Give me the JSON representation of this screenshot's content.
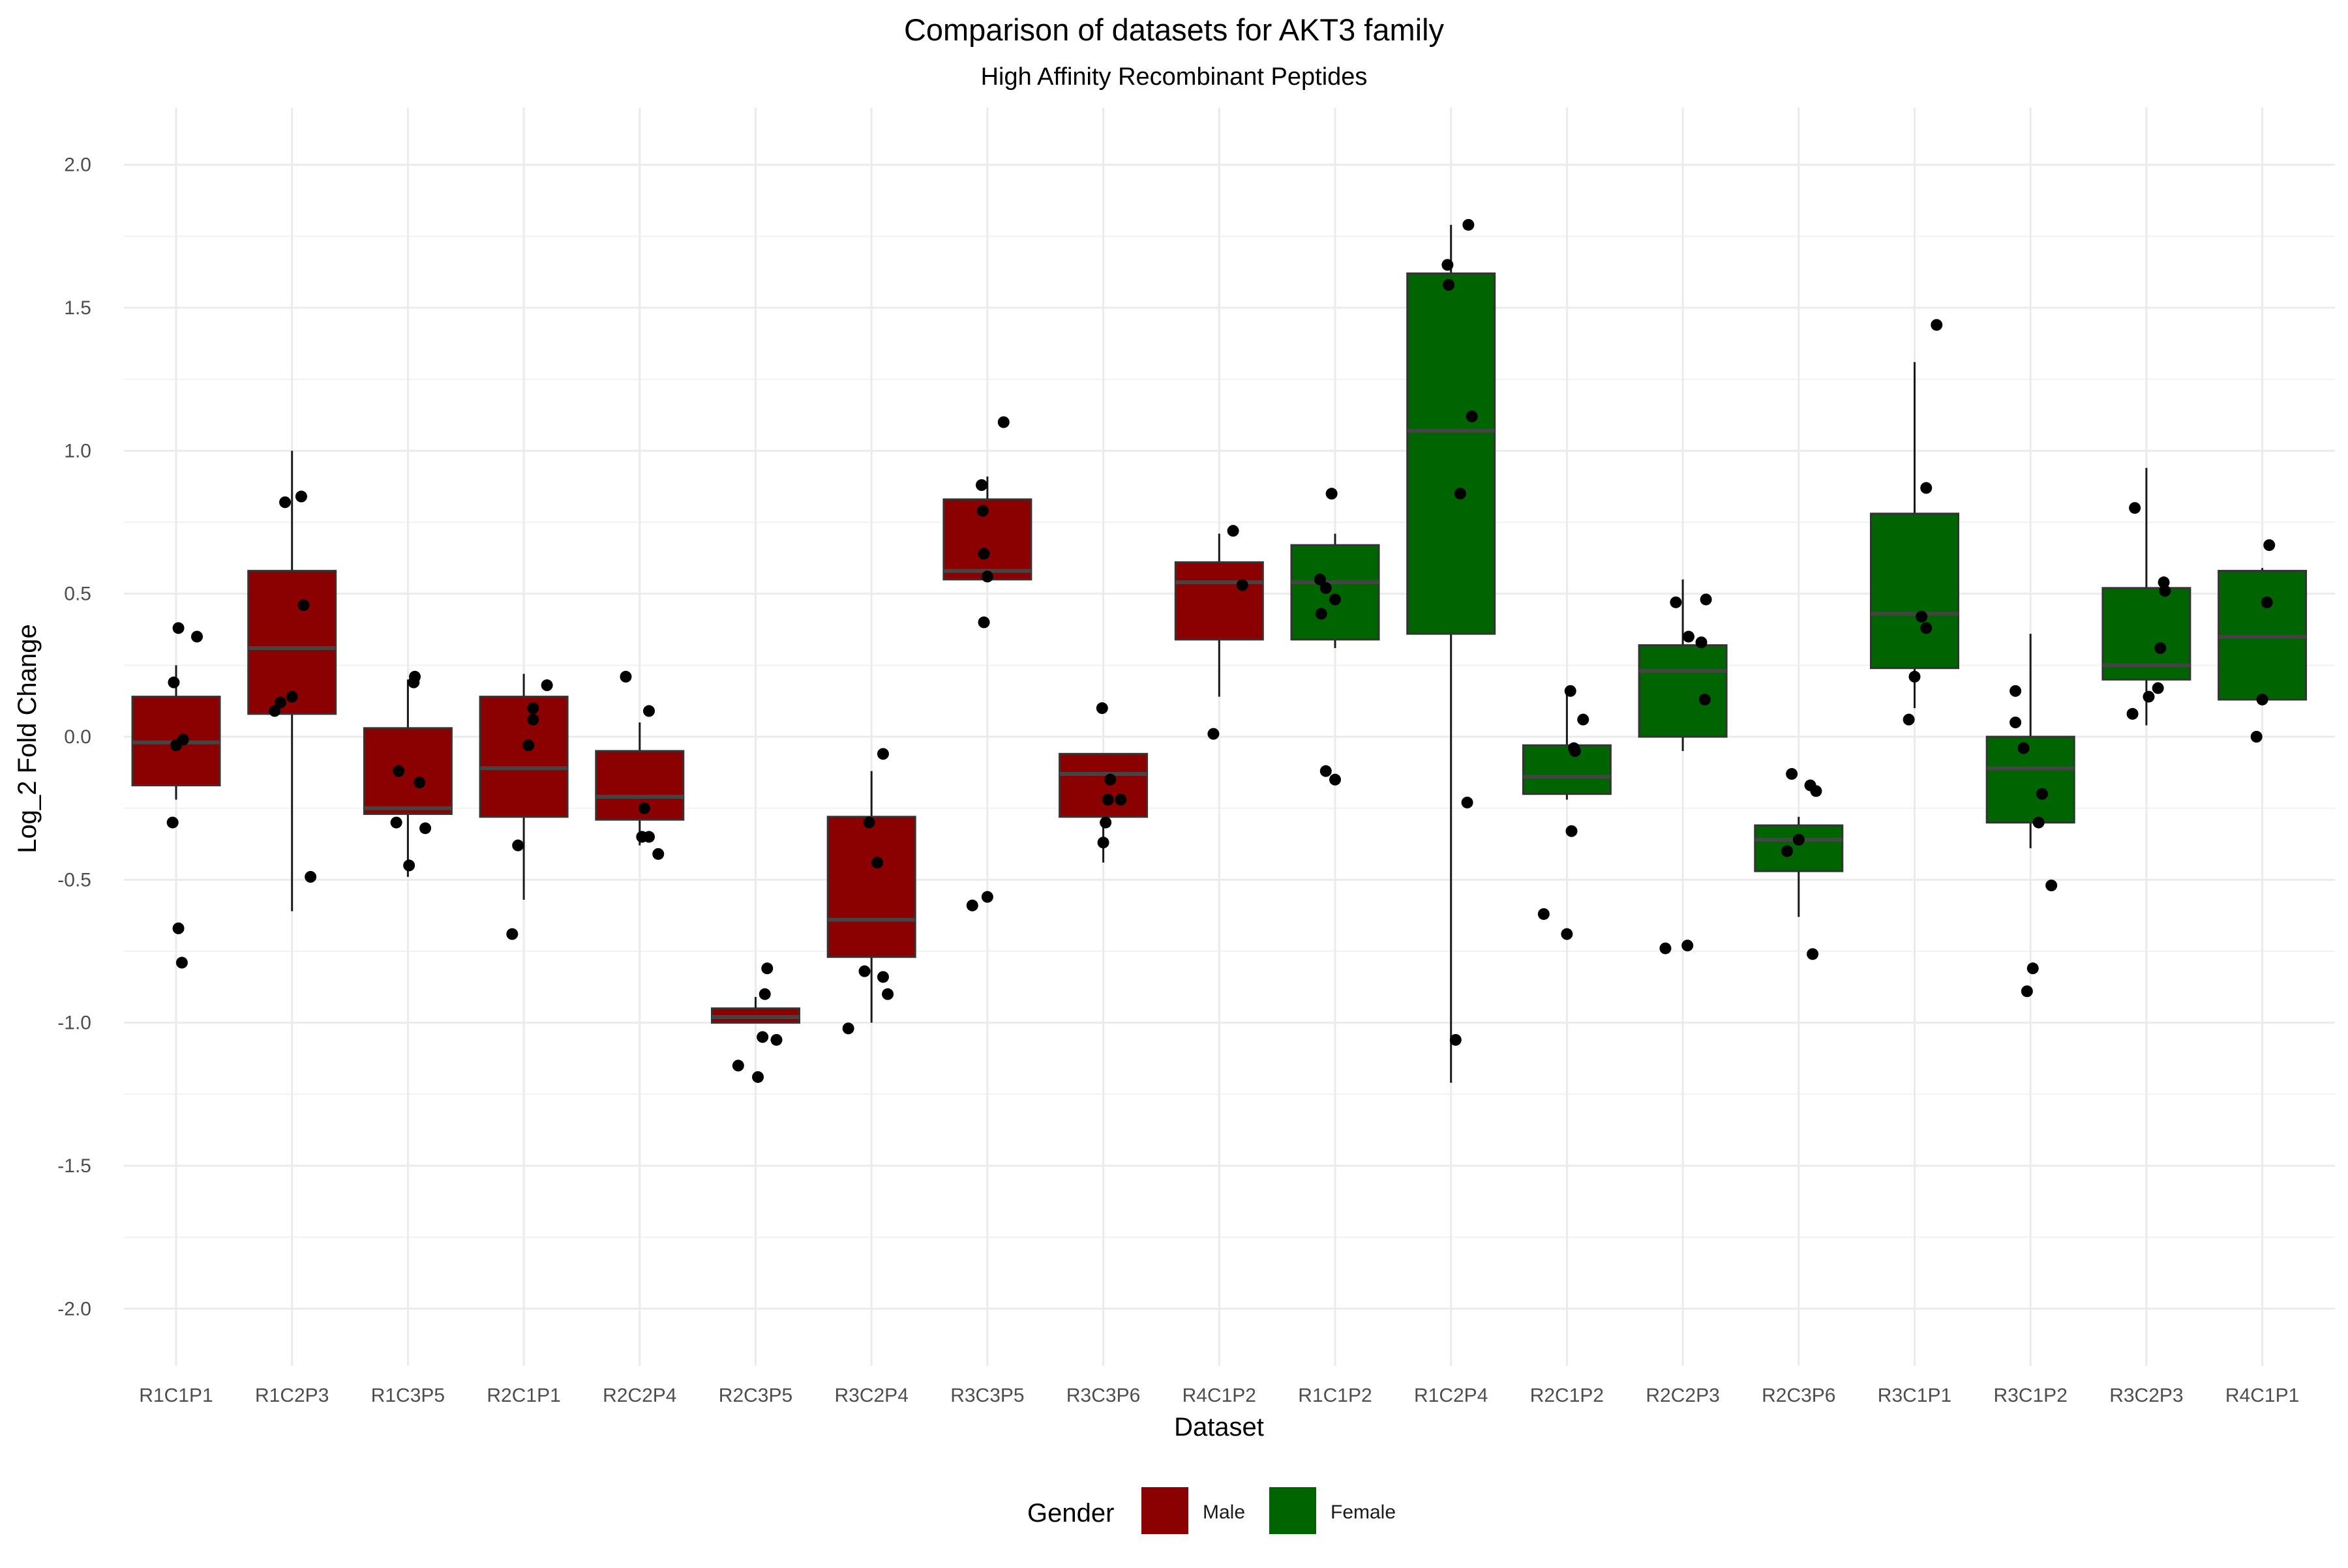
{
  "chart_data": {
    "type": "box",
    "title": "Comparison of datasets for AKT3 family",
    "subtitle": "High Affinity Recombinant Peptides",
    "xlabel": "Dataset",
    "ylabel": "Log_2 Fold Change",
    "ylim": [
      -2.2,
      2.2
    ],
    "yticks": [
      -2.0,
      -1.5,
      -1.0,
      -0.5,
      0.0,
      0.5,
      1.0,
      1.5,
      2.0
    ],
    "ytick_labels": [
      "-2.0",
      "-1.5",
      "-1.0",
      "-0.5",
      "0.0",
      "0.5",
      "1.0",
      "1.5",
      "2.0"
    ],
    "grid": true,
    "legend": {
      "title": "Gender",
      "position": "bottom",
      "entries": [
        {
          "label": "Male",
          "color": "#8b0000"
        },
        {
          "label": "Female",
          "color": "#006400"
        }
      ]
    },
    "colors": {
      "Male": "#8b0000",
      "Female": "#006400"
    },
    "categories": [
      "R1C1P1",
      "R1C2P3",
      "R1C3P5",
      "R2C1P1",
      "R2C2P4",
      "R2C3P5",
      "R3C2P4",
      "R3C3P5",
      "R3C3P6",
      "R4C1P2",
      "R1C1P2",
      "R1C2P4",
      "R2C1P2",
      "R2C2P3",
      "R2C3P6",
      "R3C1P1",
      "R3C1P2",
      "R3C2P3",
      "R4C1P1"
    ],
    "boxes": [
      {
        "dataset": "R1C1P1",
        "gender": "Male",
        "whisker_low": -0.22,
        "q1": -0.17,
        "median": -0.02,
        "q3": 0.14,
        "whisker_high": 0.25,
        "points": [
          [
            -0.02,
            0.19
          ],
          [
            0.0,
            -0.03
          ],
          [
            0.02,
            -0.67
          ],
          [
            0.05,
            -0.79
          ],
          [
            0.18,
            0.35
          ],
          [
            0.02,
            0.38
          ],
          [
            -0.03,
            -0.3
          ],
          [
            0.06,
            -0.01
          ]
        ]
      },
      {
        "dataset": "R1C2P3",
        "gender": "Male",
        "whisker_low": -0.61,
        "q1": 0.08,
        "median": 0.31,
        "q3": 0.58,
        "whisker_high": 1.0,
        "points": [
          [
            -0.06,
            0.82
          ],
          [
            0.08,
            0.84
          ],
          [
            0.1,
            0.46
          ],
          [
            0.0,
            0.14
          ],
          [
            -0.15,
            0.09
          ],
          [
            -0.1,
            0.12
          ],
          [
            0.16,
            -0.49
          ]
        ]
      },
      {
        "dataset": "R1C3P5",
        "gender": "Male",
        "whisker_low": -0.49,
        "q1": -0.27,
        "median": -0.25,
        "q3": 0.03,
        "whisker_high": 0.2,
        "points": [
          [
            0.06,
            0.21
          ],
          [
            0.05,
            0.19
          ],
          [
            -0.08,
            -0.12
          ],
          [
            0.1,
            -0.16
          ],
          [
            -0.1,
            -0.3
          ],
          [
            0.15,
            -0.32
          ],
          [
            0.01,
            -0.45
          ]
        ]
      },
      {
        "dataset": "R2C1P1",
        "gender": "Male",
        "whisker_low": -0.57,
        "q1": -0.28,
        "median": -0.11,
        "q3": 0.14,
        "whisker_high": 0.22,
        "points": [
          [
            0.08,
            0.1
          ],
          [
            0.2,
            0.18
          ],
          [
            0.08,
            0.06
          ],
          [
            0.04,
            -0.03
          ],
          [
            -0.05,
            -0.38
          ],
          [
            -0.1,
            -0.69
          ]
        ]
      },
      {
        "dataset": "R2C2P4",
        "gender": "Male",
        "whisker_low": -0.38,
        "q1": -0.29,
        "median": -0.21,
        "q3": -0.05,
        "whisker_high": 0.05,
        "points": [
          [
            -0.12,
            0.21
          ],
          [
            0.08,
            0.09
          ],
          [
            0.04,
            -0.25
          ],
          [
            0.02,
            -0.35
          ],
          [
            0.08,
            -0.35
          ],
          [
            0.16,
            -0.41
          ]
        ]
      },
      {
        "dataset": "R2C3P5",
        "gender": "Male",
        "whisker_low": -1.0,
        "q1": -1.0,
        "median": -0.98,
        "q3": -0.95,
        "whisker_high": -0.91,
        "points": [
          [
            0.1,
            -0.81
          ],
          [
            0.08,
            -0.9
          ],
          [
            0.06,
            -1.05
          ],
          [
            0.18,
            -1.06
          ],
          [
            -0.15,
            -1.15
          ],
          [
            0.02,
            -1.19
          ]
        ]
      },
      {
        "dataset": "R3C2P4",
        "gender": "Male",
        "whisker_low": -1.0,
        "q1": -0.77,
        "median": -0.64,
        "q3": -0.28,
        "whisker_high": -0.12,
        "points": [
          [
            0.1,
            -0.06
          ],
          [
            -0.02,
            -0.3
          ],
          [
            0.05,
            -0.44
          ],
          [
            -0.06,
            -0.82
          ],
          [
            0.1,
            -0.84
          ],
          [
            0.14,
            -0.9
          ],
          [
            -0.2,
            -1.02
          ]
        ]
      },
      {
        "dataset": "R3C3P5",
        "gender": "Male",
        "whisker_low": 0.55,
        "q1": 0.55,
        "median": 0.58,
        "q3": 0.83,
        "whisker_high": 0.91,
        "points": [
          [
            0.14,
            1.1
          ],
          [
            -0.05,
            0.88
          ],
          [
            -0.04,
            0.79
          ],
          [
            -0.03,
            0.64
          ],
          [
            0.0,
            0.56
          ],
          [
            -0.03,
            0.4
          ],
          [
            -0.13,
            -0.59
          ],
          [
            0.0,
            -0.56
          ]
        ]
      },
      {
        "dataset": "R3C3P6",
        "gender": "Male",
        "whisker_low": -0.44,
        "q1": -0.28,
        "median": -0.13,
        "q3": -0.06,
        "whisker_high": -0.06,
        "points": [
          [
            -0.01,
            0.1
          ],
          [
            0.06,
            -0.15
          ],
          [
            0.15,
            -0.22
          ],
          [
            0.04,
            -0.22
          ],
          [
            0.02,
            -0.3
          ],
          [
            0.0,
            -0.37
          ]
        ]
      },
      {
        "dataset": "R4C1P2",
        "gender": "Male",
        "whisker_low": 0.14,
        "q1": 0.34,
        "median": 0.54,
        "q3": 0.61,
        "whisker_high": 0.71,
        "points": [
          [
            0.12,
            0.72
          ],
          [
            0.2,
            0.53
          ],
          [
            -0.05,
            0.01
          ]
        ]
      },
      {
        "dataset": "R1C1P2",
        "gender": "Female",
        "whisker_low": 0.31,
        "q1": 0.34,
        "median": 0.54,
        "q3": 0.67,
        "whisker_high": 0.71,
        "points": [
          [
            -0.03,
            0.85
          ],
          [
            -0.13,
            0.55
          ],
          [
            -0.08,
            0.52
          ],
          [
            0.0,
            0.48
          ],
          [
            -0.12,
            0.43
          ],
          [
            -0.08,
            -0.12
          ],
          [
            0.0,
            -0.15
          ]
        ]
      },
      {
        "dataset": "R1C2P4",
        "gender": "Female",
        "whisker_low": -1.21,
        "q1": 0.36,
        "median": 1.07,
        "q3": 1.62,
        "whisker_high": 1.79,
        "points": [
          [
            0.15,
            1.79
          ],
          [
            -0.03,
            1.65
          ],
          [
            -0.02,
            1.58
          ],
          [
            0.18,
            1.12
          ],
          [
            0.08,
            0.85
          ],
          [
            0.14,
            -0.23
          ],
          [
            0.04,
            -1.06
          ]
        ]
      },
      {
        "dataset": "R2C1P2",
        "gender": "Female",
        "whisker_low": -0.22,
        "q1": -0.2,
        "median": -0.14,
        "q3": -0.03,
        "whisker_high": 0.16,
        "points": [
          [
            0.03,
            0.16
          ],
          [
            0.14,
            0.06
          ],
          [
            0.06,
            -0.04
          ],
          [
            0.07,
            -0.05
          ],
          [
            0.04,
            -0.33
          ],
          [
            -0.2,
            -0.62
          ],
          [
            0.0,
            -0.69
          ]
        ]
      },
      {
        "dataset": "R2C2P3",
        "gender": "Female",
        "whisker_low": -0.05,
        "q1": 0.0,
        "median": 0.23,
        "q3": 0.32,
        "whisker_high": 0.55,
        "points": [
          [
            -0.06,
            0.47
          ],
          [
            0.2,
            0.48
          ],
          [
            0.05,
            0.35
          ],
          [
            0.16,
            0.33
          ],
          [
            0.19,
            0.13
          ],
          [
            -0.15,
            -0.74
          ],
          [
            0.04,
            -0.73
          ]
        ]
      },
      {
        "dataset": "R2C3P6",
        "gender": "Female",
        "whisker_low": -0.63,
        "q1": -0.47,
        "median": -0.36,
        "q3": -0.31,
        "whisker_high": -0.28,
        "points": [
          [
            -0.06,
            -0.13
          ],
          [
            0.1,
            -0.17
          ],
          [
            0.15,
            -0.19
          ],
          [
            0.0,
            -0.36
          ],
          [
            -0.1,
            -0.4
          ],
          [
            0.12,
            -0.76
          ]
        ]
      },
      {
        "dataset": "R3C1P1",
        "gender": "Female",
        "whisker_low": 0.1,
        "q1": 0.24,
        "median": 0.43,
        "q3": 0.78,
        "whisker_high": 1.31,
        "points": [
          [
            0.19,
            1.44
          ],
          [
            0.1,
            0.87
          ],
          [
            0.06,
            0.42
          ],
          [
            0.1,
            0.38
          ],
          [
            0.0,
            0.21
          ],
          [
            -0.05,
            0.06
          ]
        ]
      },
      {
        "dataset": "R3C1P2",
        "gender": "Female",
        "whisker_low": -0.39,
        "q1": -0.3,
        "median": -0.11,
        "q3": 0.0,
        "whisker_high": 0.36,
        "points": [
          [
            -0.13,
            0.16
          ],
          [
            -0.13,
            0.05
          ],
          [
            -0.06,
            -0.04
          ],
          [
            0.1,
            -0.2
          ],
          [
            0.07,
            -0.3
          ],
          [
            0.18,
            -0.52
          ],
          [
            0.02,
            -0.81
          ],
          [
            -0.03,
            -0.89
          ]
        ]
      },
      {
        "dataset": "R3C2P3",
        "gender": "Female",
        "whisker_low": 0.04,
        "q1": 0.2,
        "median": 0.25,
        "q3": 0.52,
        "whisker_high": 0.94,
        "points": [
          [
            -0.1,
            0.8
          ],
          [
            0.15,
            0.54
          ],
          [
            0.16,
            0.51
          ],
          [
            0.12,
            0.31
          ],
          [
            0.1,
            0.17
          ],
          [
            0.02,
            0.14
          ],
          [
            -0.12,
            0.08
          ]
        ]
      },
      {
        "dataset": "R4C1P1",
        "gender": "Female",
        "whisker_low": 0.11,
        "q1": 0.13,
        "median": 0.35,
        "q3": 0.58,
        "whisker_high": 0.59,
        "points": [
          [
            0.06,
            0.67
          ],
          [
            0.04,
            0.47
          ],
          [
            0.0,
            0.13
          ],
          [
            -0.05,
            0.0
          ]
        ]
      }
    ]
  }
}
